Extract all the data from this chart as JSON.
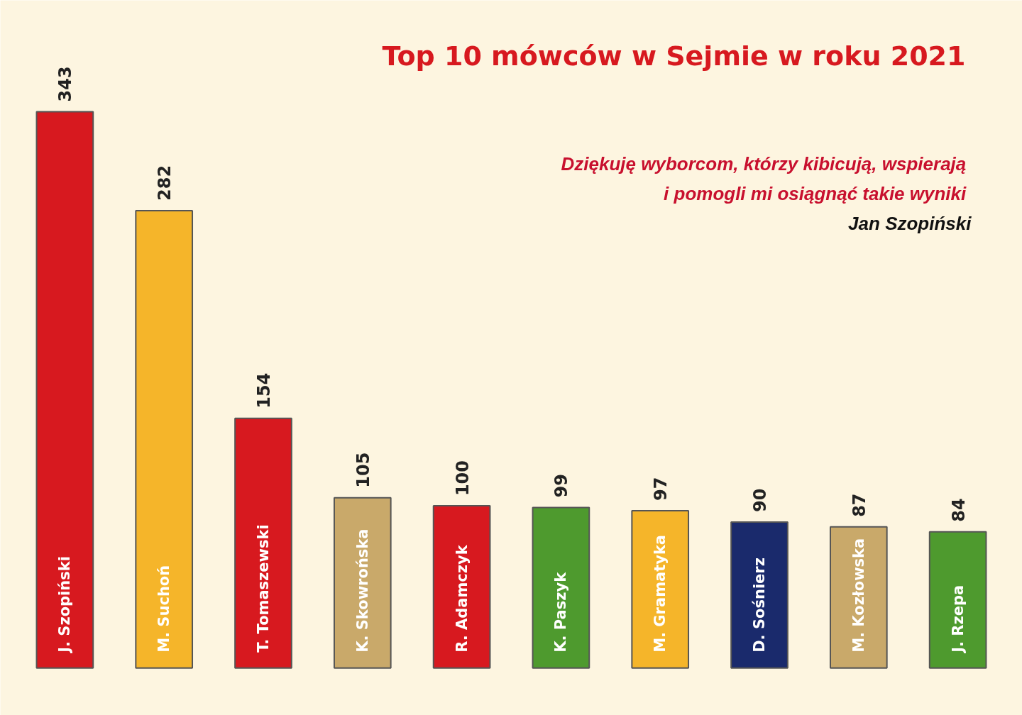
{
  "chart_data": {
    "type": "bar",
    "title": "Top 10 mówców w Sejmie w roku 2021",
    "categories": [
      "J. Szopiński",
      "M. Suchoń",
      "T. Tomaszewski",
      "K. Skowrońska",
      "R. Adamczyk",
      "K. Paszyk",
      "M. Gramatyka",
      "D. Sośnierz",
      "M. Kozłowska",
      "J. Rzepa"
    ],
    "values": [
      343,
      282,
      154,
      105,
      100,
      99,
      97,
      90,
      87,
      84
    ],
    "colors": [
      "#d7191f",
      "#f5b52a",
      "#d7191f",
      "#c9a96a",
      "#d7191f",
      "#4e9a2e",
      "#f5b52a",
      "#1a2a6c",
      "#c9a96a",
      "#4e9a2e"
    ],
    "data_labels": true,
    "annotations": [
      "Dziękuję  wyborcom, którzy kibicują, wspierają\ni  pomogli mi osiągnąć takie wyniki",
      "Jan Szopiński"
    ]
  }
}
